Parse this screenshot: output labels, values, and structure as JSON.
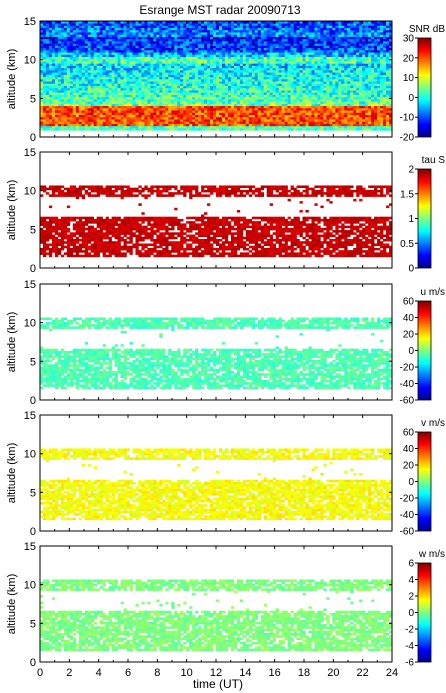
{
  "chart_data": {
    "type": "heatmap",
    "title": "Esrange MST radar 20090713",
    "xlabel": "time (UT)",
    "x_ticks": [
      0,
      2,
      4,
      6,
      8,
      10,
      12,
      14,
      16,
      18,
      20,
      22,
      24
    ],
    "xlim": [
      0,
      24
    ],
    "panels": [
      {
        "ylabel": "altitude (km)",
        "ylim": [
          0,
          15
        ],
        "y_ticks": [
          0,
          5,
          10,
          15
        ],
        "colorbar_label": "SNR dB",
        "colorbar_range": [
          -20,
          30
        ],
        "colorbar_ticks": [
          30,
          20,
          10,
          0,
          -10,
          -20
        ],
        "data_altitude_range": [
          1,
          15
        ]
      },
      {
        "ylabel": "altitude (km)",
        "ylim": [
          0,
          15
        ],
        "y_ticks": [
          0,
          5,
          10,
          15
        ],
        "colorbar_label": "tau S",
        "colorbar_range": [
          0,
          2
        ],
        "colorbar_ticks": [
          2,
          1.5,
          1,
          0.5,
          0
        ],
        "data_altitude_range": [
          1.5,
          10.8
        ]
      },
      {
        "ylabel": "altitude (km)",
        "ylim": [
          0,
          15
        ],
        "y_ticks": [
          0,
          5,
          10,
          15
        ],
        "colorbar_label": "u m/s",
        "colorbar_range": [
          -60,
          60
        ],
        "colorbar_ticks": [
          60,
          40,
          20,
          0,
          -20,
          -40,
          -60
        ],
        "data_altitude_range": [
          1.5,
          10.8
        ]
      },
      {
        "ylabel": "altitude (km)",
        "ylim": [
          0,
          15
        ],
        "y_ticks": [
          0,
          5,
          10,
          15
        ],
        "colorbar_label": "v m/s",
        "colorbar_range": [
          -60,
          60
        ],
        "colorbar_ticks": [
          60,
          40,
          20,
          0,
          -20,
          -40,
          -60
        ],
        "data_altitude_range": [
          1.5,
          10.8
        ]
      },
      {
        "ylabel": "altitude (km)",
        "ylim": [
          0,
          15
        ],
        "y_ticks": [
          0,
          5,
          10,
          15
        ],
        "colorbar_label": "w m/s",
        "colorbar_range": [
          -6,
          6
        ],
        "colorbar_ticks": [
          6,
          4,
          2,
          0,
          -2,
          -4,
          -6
        ],
        "data_altitude_range": [
          1.5,
          10.8
        ]
      }
    ]
  }
}
